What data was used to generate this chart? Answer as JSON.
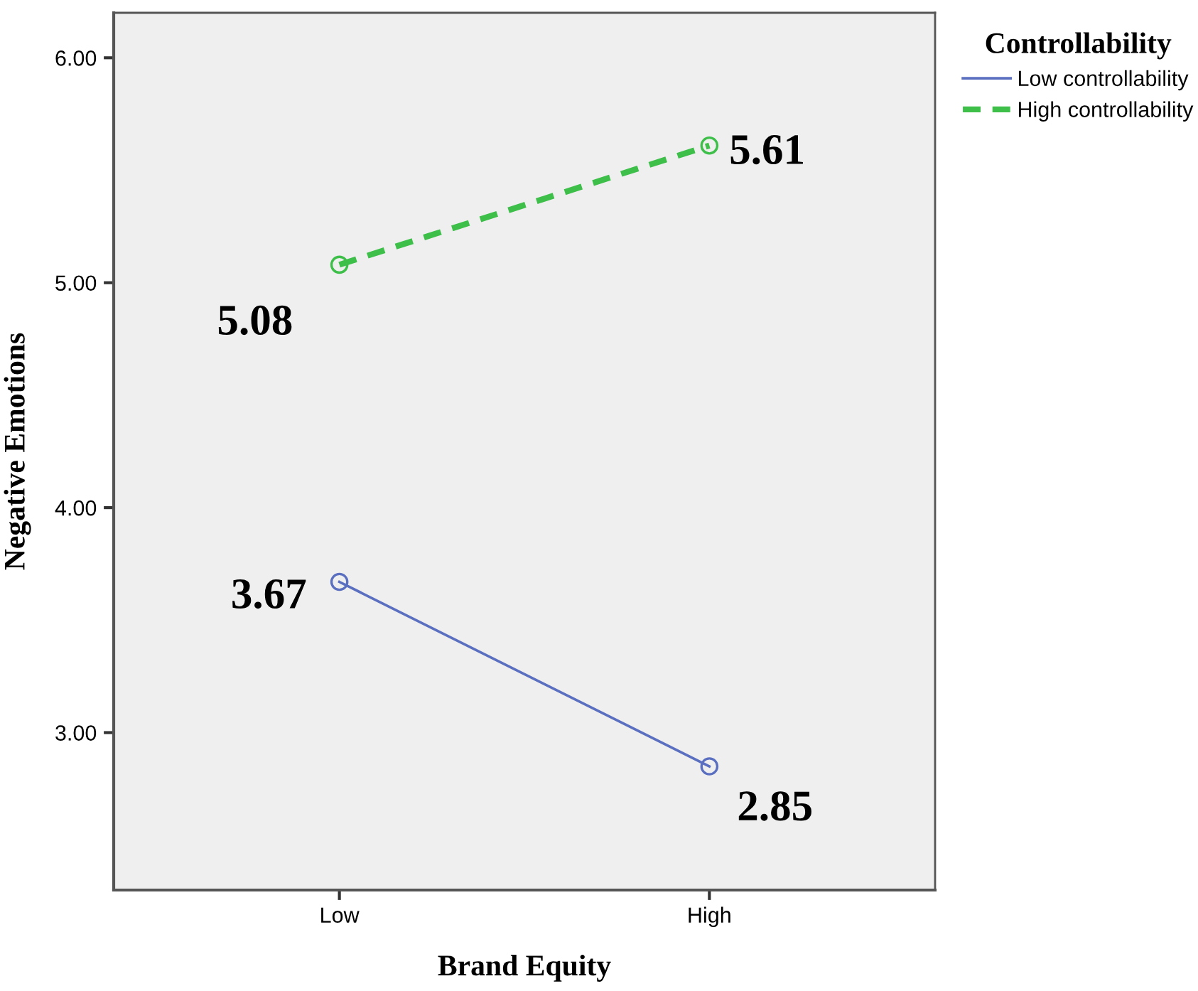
{
  "chart_data": {
    "type": "line",
    "xlabel": "Brand Equity",
    "ylabel": "Negative Emotions",
    "legend_title": "Controllability",
    "categories": [
      "Low",
      "High"
    ],
    "series": [
      {
        "name": "Low controllability",
        "color": "#5b6fc0",
        "values": [
          3.67,
          2.85
        ],
        "value_labels": [
          "3.67",
          "2.85"
        ],
        "line_style": "solid"
      },
      {
        "name": "High controllability",
        "color": "#3dbf4a",
        "values": [
          5.08,
          5.61
        ],
        "value_labels": [
          "5.08",
          "5.61"
        ],
        "line_style": "dashed"
      }
    ],
    "ylim": [
      2.3,
      6.2
    ],
    "yticks": [
      {
        "value": 3,
        "label": "3.00"
      },
      {
        "value": 4,
        "label": "4.00"
      },
      {
        "value": 5,
        "label": "5.00"
      },
      {
        "value": 6,
        "label": "6.00"
      }
    ],
    "marker": "circle",
    "grid": false,
    "legend": "right"
  }
}
